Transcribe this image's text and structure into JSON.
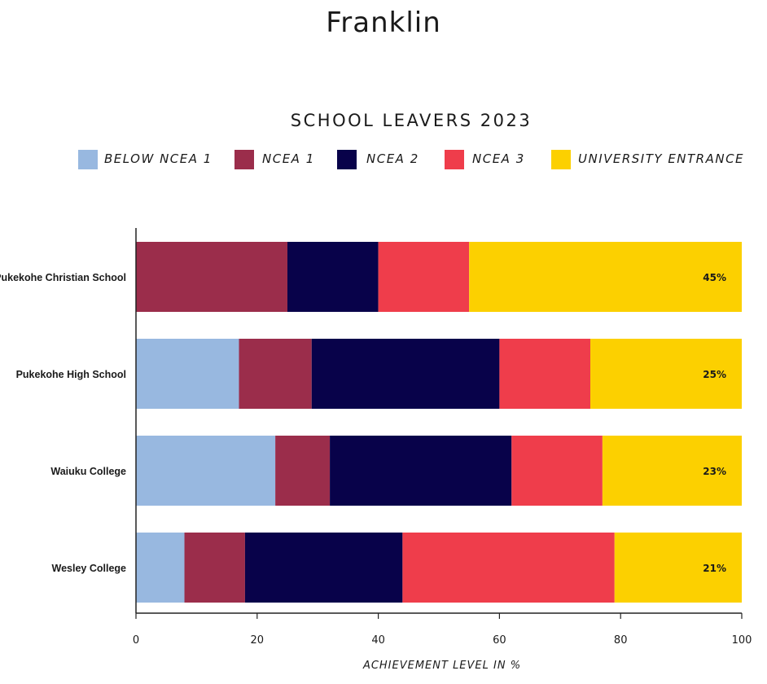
{
  "page": {
    "title": "Franklin"
  },
  "chart_data": {
    "type": "bar",
    "orientation": "horizontal",
    "stacked": true,
    "title": "SCHOOL LEAVERS 2023",
    "xlabel": "ACHIEVEMENT LEVEL IN %",
    "ylabel": "",
    "xlim": [
      0,
      100
    ],
    "xticks": [
      "0",
      "20",
      "40",
      "60",
      "80",
      "100"
    ],
    "grid": false,
    "legend_position": "top",
    "categories": [
      "Pukekohe Christian School",
      "Pukekohe High School",
      "Waiuku College",
      "Wesley College"
    ],
    "series": [
      {
        "name": "BELOW NCEA 1",
        "color": "#98b8e0",
        "values": [
          0,
          17,
          23,
          8
        ]
      },
      {
        "name": "NCEA 1",
        "color": "#9b2d4b",
        "values": [
          25,
          12,
          9,
          10
        ]
      },
      {
        "name": "NCEA 2",
        "color": "#08024a",
        "values": [
          15,
          31,
          30,
          26
        ]
      },
      {
        "name": "NCEA 3",
        "color": "#ef3d4b",
        "values": [
          15,
          15,
          15,
          35
        ]
      },
      {
        "name": "UNIVERSITY ENTRANCE",
        "color": "#fcd000",
        "values": [
          45,
          25,
          23,
          21
        ]
      }
    ],
    "data_labels": [
      "45%",
      "25%",
      "23%",
      "21%"
    ]
  }
}
